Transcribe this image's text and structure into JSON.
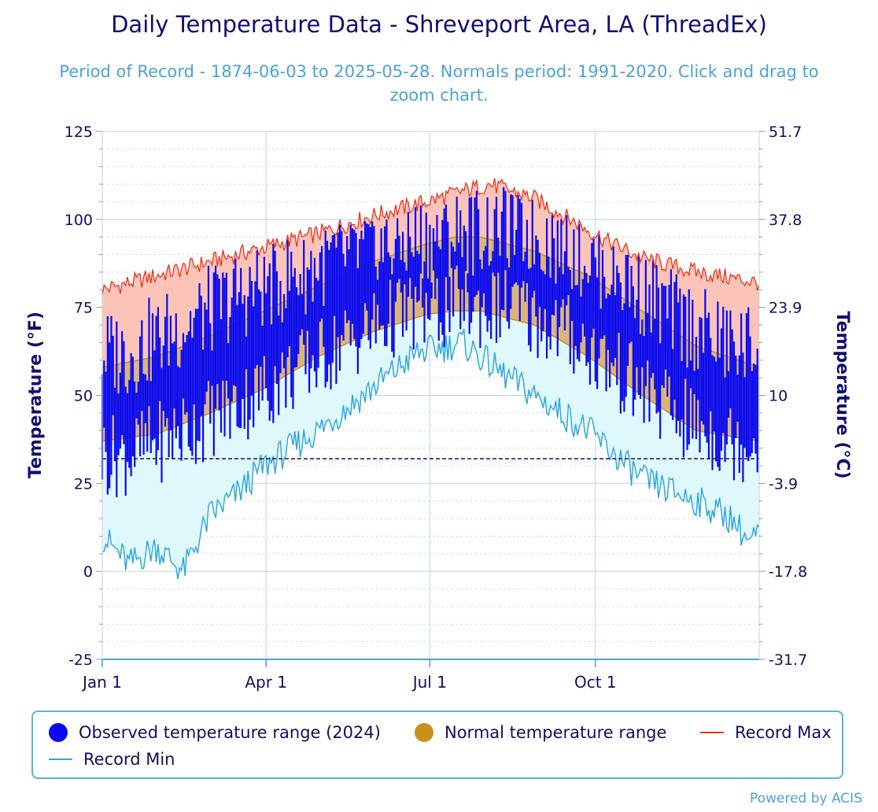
{
  "chart_data": {
    "type": "area",
    "title": "Daily Temperature Data - Shreveport Area, LA (ThreadEx)",
    "subtitle": "Period of Record - 1874-06-03 to 2025-05-28. Normals period: 1991-2020. Click and drag to zoom chart.",
    "ylabel": "Temperature (°F)",
    "ylabel_right": "Temperature (°C)",
    "ylim": [
      -25,
      125
    ],
    "y_ticks": [
      "125",
      "100",
      "75",
      "50",
      "25",
      "0",
      "-25"
    ],
    "y_ticks_right": [
      "51.7",
      "37.8",
      "23.9",
      "10",
      "-3.9",
      "-17.8",
      "-31.7"
    ],
    "x_ticks": [
      "Jan 1",
      "Apr 1",
      "Jul 1",
      "Oct 1"
    ],
    "x_range_days": [
      0,
      365
    ],
    "freezing_line": 32,
    "grid": true,
    "legend_position": "bottom",
    "series": [
      {
        "name": "Observed temperature range (2024)",
        "kind": "range-bars",
        "color": "#0a0af0",
        "approx_max_by_month": [
          62,
          70,
          78,
          84,
          90,
          93,
          96,
          98,
          93,
          84,
          72,
          64
        ],
        "approx_min_by_month": [
          33,
          40,
          47,
          56,
          65,
          73,
          75,
          75,
          68,
          56,
          44,
          37
        ]
      },
      {
        "name": "Normal temperature range",
        "kind": "band",
        "color": "#c8901c",
        "high": {
          "x": [
            0,
            30,
            60,
            90,
            120,
            150,
            180,
            196,
            210,
            240,
            270,
            300,
            330,
            365
          ],
          "y": [
            58,
            61,
            67,
            74,
            81,
            88,
            93,
            95,
            95,
            91,
            84,
            74,
            64,
            58
          ]
        },
        "low": {
          "x": [
            0,
            30,
            60,
            90,
            120,
            150,
            180,
            196,
            210,
            240,
            270,
            300,
            330,
            365
          ],
          "y": [
            37,
            39,
            45,
            52,
            61,
            68,
            73,
            74,
            74,
            70,
            61,
            50,
            40,
            37
          ]
        }
      },
      {
        "name": "Record Max",
        "kind": "line",
        "color": "#e8321e",
        "x": [
          0,
          30,
          60,
          90,
          120,
          150,
          180,
          200,
          215,
          240,
          260,
          280,
          300,
          330,
          365
        ],
        "y": [
          80,
          84,
          88,
          92,
          96,
          101,
          105,
          108,
          110,
          106,
          100,
          94,
          89,
          85,
          82
        ]
      },
      {
        "name": "Record Min",
        "kind": "line",
        "color": "#30a8dc",
        "x": [
          0,
          15,
          30,
          45,
          60,
          75,
          90,
          120,
          150,
          175,
          200,
          220,
          240,
          270,
          300,
          330,
          350,
          360,
          365
        ],
        "y": [
          10,
          2,
          7,
          0,
          16,
          22,
          30,
          40,
          52,
          62,
          65,
          57,
          50,
          40,
          26,
          20,
          15,
          8,
          11
        ]
      }
    ]
  },
  "legend": {
    "observed": "Observed temperature range (2024)",
    "normal": "Normal temperature range",
    "record_max": "Record Max",
    "record_min": "Record Min"
  },
  "colors": {
    "observed": "#0a0af0",
    "normal": "#c8901c",
    "normal_fill": "#dbb57b",
    "record_max": "#e8321e",
    "record_max_fill": "#fcc4b8",
    "record_min": "#30a8dc",
    "record_min_fill": "#dff8fc",
    "axis_text": "#101060",
    "grid": "#b8d4e8",
    "freezing": "#101070"
  },
  "credits": "Powered by ACIS"
}
